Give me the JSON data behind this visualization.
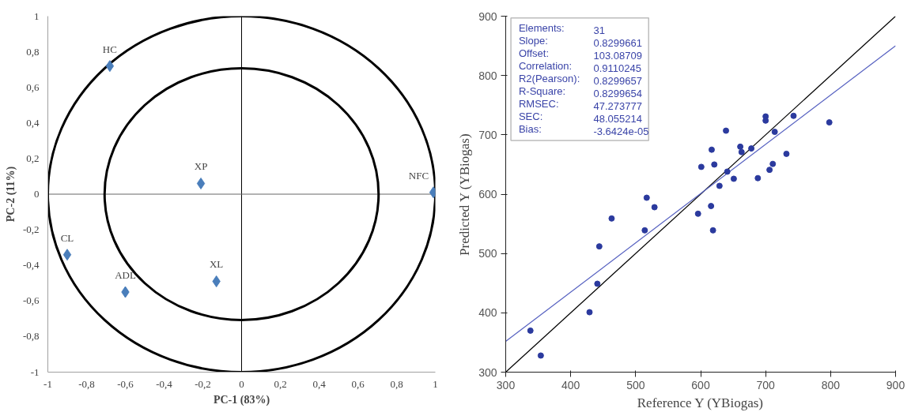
{
  "chart_data": [
    {
      "type": "scatter",
      "xlabel": "PC-1 (83%)",
      "ylabel": "PC-2 (11%)",
      "grid": false,
      "xlim": [
        -1,
        1
      ],
      "ylim": [
        -1,
        1
      ],
      "xticks": [
        {
          "value": -1,
          "label": "-1"
        },
        {
          "value": -0.8,
          "label": "-0,8"
        },
        {
          "value": -0.6,
          "label": "-0,6"
        },
        {
          "value": -0.4,
          "label": "-0,4"
        },
        {
          "value": -0.2,
          "label": "-0,2"
        },
        {
          "value": 0,
          "label": "0"
        },
        {
          "value": 0.2,
          "label": "0,2"
        },
        {
          "value": 0.4,
          "label": "0,4"
        },
        {
          "value": 0.6,
          "label": "0,6"
        },
        {
          "value": 0.8,
          "label": "0,8"
        },
        {
          "value": 1,
          "label": "1"
        }
      ],
      "yticks": [
        {
          "value": -1,
          "label": "-1"
        },
        {
          "value": -0.8,
          "label": "-0,8"
        },
        {
          "value": -0.6,
          "label": "-0,6"
        },
        {
          "value": -0.4,
          "label": "-0,4"
        },
        {
          "value": -0.2,
          "label": "-0,2"
        },
        {
          "value": 0,
          "label": "0"
        },
        {
          "value": 0.2,
          "label": "0,2"
        },
        {
          "value": 0.4,
          "label": "0,4"
        },
        {
          "value": 0.6,
          "label": "0,6"
        },
        {
          "value": 0.8,
          "label": "0,8"
        },
        {
          "value": 1,
          "label": "1"
        }
      ],
      "ref_lines": [
        {
          "axis": "x",
          "value": 0,
          "color": "#000000"
        },
        {
          "axis": "y",
          "value": 0,
          "color": "#666666"
        }
      ],
      "series": [
        {
          "color": "#4a7ebb",
          "marker": "diamond",
          "x": [
            -0.68,
            -0.21,
            0.99,
            -0.9,
            -0.6,
            -0.13
          ],
          "values": [
            0.72,
            0.06,
            0.01,
            -0.34,
            -0.55,
            -0.49
          ],
          "value_labels": [
            "HC",
            "XP",
            "NFC",
            "CL",
            "ADL",
            "XL"
          ]
        }
      ]
    },
    {
      "type": "scatter",
      "xlabel": "Reference Y (YBiogas)",
      "ylabel": "Predicted Y (YBiogas)",
      "grid": false,
      "xlim": [
        300,
        900
      ],
      "ylim": [
        300,
        900
      ],
      "xticks": [
        300,
        400,
        500,
        600,
        700,
        800,
        900
      ],
      "yticks": [
        300,
        400,
        500,
        600,
        700,
        800,
        900
      ],
      "annotations": [
        "Elements:",
        "31",
        "Slope:",
        "0.8299661",
        "Offset:",
        "103.08709",
        "Correlation:",
        "0.9110245",
        "R2(Pearson):",
        "0.8299657",
        "R-Square:",
        "0.8299654",
        "RMSEC:",
        "47.273777",
        "SEC:",
        "48.055214",
        "Bias:",
        "-3.6424e-05"
      ],
      "series": [
        {
          "type": "line",
          "color": "#000000",
          "x": [
            300,
            900
          ],
          "values": [
            300,
            900
          ]
        },
        {
          "type": "line",
          "color": "#5560c0",
          "x": [
            300,
            900
          ],
          "values": [
            352,
            850
          ]
        },
        {
          "color": "#2b3a9e",
          "marker": "circle",
          "x": [
            338,
            354,
            429,
            441,
            444,
            463,
            514,
            517,
            529,
            596,
            601,
            616,
            617,
            619,
            621,
            629,
            639,
            641,
            651,
            661,
            663,
            678,
            688,
            706,
            711,
            714,
            732,
            798,
            700,
            700,
            743
          ],
          "values": [
            370,
            328,
            401,
            449,
            512,
            559,
            539,
            594,
            578,
            567,
            646,
            580,
            675,
            539,
            650,
            614,
            707,
            638,
            626,
            680,
            671,
            677,
            627,
            641,
            651,
            705,
            668,
            721,
            731,
            724,
            732
          ]
        }
      ]
    }
  ]
}
